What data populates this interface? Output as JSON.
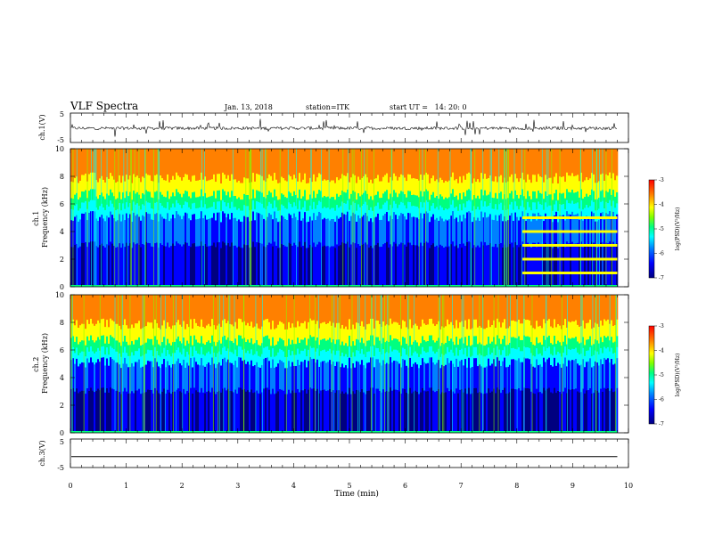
{
  "header": {
    "title": "VLF Spectra",
    "date": "Jan. 13, 2018",
    "station": "station=ITK",
    "start": "start UT =   14: 20: 0"
  },
  "chart_data": [
    {
      "type": "line",
      "ylabel": "ch.1(V)",
      "ylim": [
        -5,
        5
      ],
      "yticks": [
        "5",
        "-5"
      ],
      "xlim": [
        0,
        10
      ],
      "baseline": 0,
      "note": "noisy waveform around 0 V with sporadic spikes"
    },
    {
      "type": "heatmap",
      "ylabel": "ch.1\nFrequency (kHz)",
      "ylim": [
        0,
        10
      ],
      "yticks": [
        "0",
        "2",
        "4",
        "6",
        "8",
        "10"
      ],
      "xlim": [
        0,
        10
      ],
      "colorbar": {
        "label": "log(PSD)(V²/Hz)",
        "range": [
          -7,
          -3
        ],
        "ticks": [
          "-3",
          "-4",
          "-5",
          "-6",
          "-7"
        ]
      },
      "harmonic_band": {
        "x_start": 8.1,
        "x_end": 9.8,
        "freqs_khz": [
          1,
          2,
          3,
          4,
          5
        ]
      }
    },
    {
      "type": "heatmap",
      "ylabel": "ch.2\nFrequency (kHz)",
      "ylim": [
        0,
        10
      ],
      "yticks": [
        "0",
        "2",
        "4",
        "6",
        "8",
        "10"
      ],
      "xlim": [
        0,
        10
      ],
      "colorbar": {
        "label": "log(PSD)(V²/Hz)",
        "range": [
          -7,
          -3
        ],
        "ticks": [
          "-3",
          "-4",
          "-5",
          "-6",
          "-7"
        ]
      }
    },
    {
      "type": "line",
      "ylabel": "ch.3(V)",
      "ylim": [
        -5,
        5
      ],
      "yticks": [
        "5",
        "-5"
      ],
      "xlim": [
        0,
        10
      ],
      "baseline": -1.2,
      "note": "flat line"
    }
  ],
  "xaxis": {
    "label": "Time (min)",
    "ticks": [
      "0",
      "1",
      "2",
      "3",
      "4",
      "5",
      "6",
      "7",
      "8",
      "9",
      "10"
    ],
    "data_end": 9.8
  },
  "colormap": [
    "#000080",
    "#0000ff",
    "#0080ff",
    "#00ffff",
    "#00ff80",
    "#80ff00",
    "#ffff00",
    "#ff8000",
    "#ff0000"
  ]
}
